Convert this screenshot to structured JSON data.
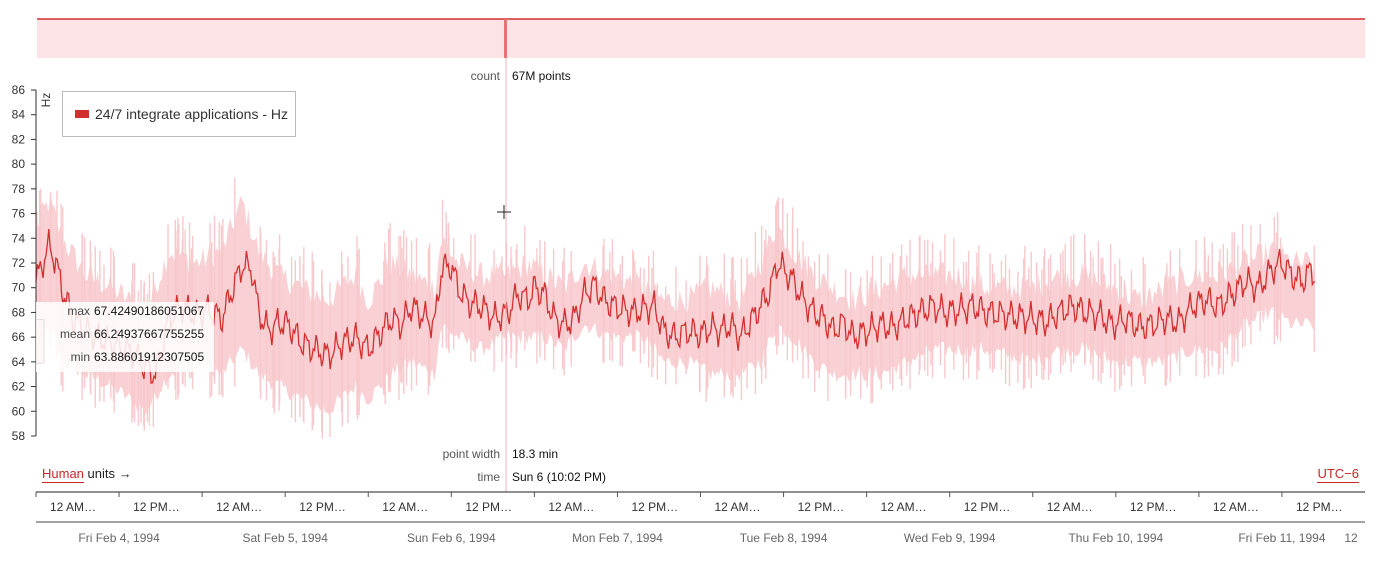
{
  "header": {
    "count_label": "count",
    "count_value": "67M points"
  },
  "cursor_info": {
    "point_width_label": "point width",
    "point_width_value": "18.3 min",
    "time_label": "time",
    "time_value": "Sun 6 (10:02 PM)"
  },
  "stats": {
    "max_label": "max",
    "max_value": "67.42490186051067",
    "mean_label": "mean",
    "mean_value": "66.24937667755255",
    "min_label": "min",
    "min_value": "63.88601912307505"
  },
  "controls": {
    "units_link": "Human",
    "units_suffix": "units →",
    "timezone": "UTC−6"
  },
  "colors": {
    "series_line": "#d32f2f",
    "series_band": "#f8c9cc",
    "overview_band": "#fce4e6",
    "accent": "#c62828"
  },
  "chart_data": {
    "type": "line",
    "legend": "24/7 integrate applications - Hz",
    "ylabel": "Hz",
    "ylim": [
      58,
      86
    ],
    "yticks": [
      "58",
      "60",
      "62",
      "64",
      "66",
      "68",
      "70",
      "72",
      "74",
      "76",
      "78",
      "80",
      "82",
      "84",
      "86"
    ],
    "time_ticks": [
      "12 AM…",
      "12 PM…",
      "12 AM…",
      "12 PM…",
      "12 AM…",
      "12 PM…",
      "12 AM…",
      "12 PM…",
      "12 AM…",
      "12 PM…",
      "12 AM…",
      "12 PM…",
      "12 AM…",
      "12 PM…",
      "12 AM…",
      "12 PM…"
    ],
    "date_ticks": [
      "Fri Feb 4, 1994",
      "Sat Feb 5, 1994",
      "Sun Feb 6, 1994",
      "Mon Feb 7, 1994",
      "Tue Feb 8, 1994",
      "Wed Feb 9, 1994",
      "Thu Feb 10, 1994",
      "Fri Feb 11, 1994",
      "12"
    ],
    "days": [
      4,
      12
    ],
    "series": [
      {
        "mean": [
          [
            4.0,
            70.5
          ],
          [
            4.04,
            72.0
          ],
          [
            4.08,
            73.5
          ],
          [
            4.12,
            72.0
          ],
          [
            4.16,
            69.8
          ],
          [
            4.22,
            67.5
          ],
          [
            4.3,
            66.5
          ],
          [
            4.38,
            66.0
          ],
          [
            4.46,
            65.5
          ],
          [
            4.54,
            65.0
          ],
          [
            4.6,
            64.5
          ],
          [
            4.66,
            63.5
          ],
          [
            4.72,
            63.0
          ],
          [
            4.8,
            67.5
          ],
          [
            4.88,
            68.5
          ],
          [
            4.96,
            67.8
          ],
          [
            5.04,
            68.2
          ],
          [
            5.12,
            67.5
          ],
          [
            5.18,
            69.8
          ],
          [
            5.24,
            71.8
          ],
          [
            5.3,
            71.5
          ],
          [
            5.34,
            68.0
          ],
          [
            5.4,
            66.5
          ],
          [
            5.46,
            67.2
          ],
          [
            5.52,
            67.0
          ],
          [
            5.6,
            65.5
          ],
          [
            5.68,
            65.0
          ],
          [
            5.76,
            64.5
          ],
          [
            5.84,
            65.5
          ],
          [
            5.92,
            66.0
          ],
          [
            6.0,
            65.0
          ],
          [
            6.08,
            66.5
          ],
          [
            6.14,
            67.5
          ],
          [
            6.2,
            67.0
          ],
          [
            6.26,
            68.5
          ],
          [
            6.32,
            67.8
          ],
          [
            6.4,
            67.0
          ],
          [
            6.44,
            71.5
          ],
          [
            6.5,
            71.8
          ],
          [
            6.54,
            70.0
          ],
          [
            6.6,
            68.8
          ],
          [
            6.68,
            68.5
          ],
          [
            6.76,
            67.5
          ],
          [
            6.84,
            68.0
          ],
          [
            6.9,
            69.5
          ],
          [
            6.96,
            69.0
          ],
          [
            7.0,
            70.0
          ],
          [
            7.06,
            69.5
          ],
          [
            7.12,
            67.5
          ],
          [
            7.18,
            67.0
          ],
          [
            7.24,
            67.5
          ],
          [
            7.3,
            69.5
          ],
          [
            7.36,
            70.2
          ],
          [
            7.42,
            69.0
          ],
          [
            7.48,
            68.5
          ],
          [
            7.54,
            68.2
          ],
          [
            7.6,
            68.0
          ],
          [
            7.66,
            68.3
          ],
          [
            7.72,
            68.5
          ],
          [
            7.78,
            66.5
          ],
          [
            7.84,
            66.0
          ],
          [
            7.92,
            66.5
          ],
          [
            8.0,
            66.2
          ],
          [
            8.06,
            66.8
          ],
          [
            8.12,
            66.5
          ],
          [
            8.18,
            67.0
          ],
          [
            8.24,
            66.0
          ],
          [
            8.3,
            67.2
          ],
          [
            8.36,
            68.5
          ],
          [
            8.42,
            69.8
          ],
          [
            8.46,
            72.0
          ],
          [
            8.5,
            71.5
          ],
          [
            8.56,
            70.5
          ],
          [
            8.62,
            69.0
          ],
          [
            8.68,
            68.0
          ],
          [
            8.74,
            67.5
          ],
          [
            8.8,
            66.5
          ],
          [
            8.86,
            67.2
          ],
          [
            8.92,
            66.0
          ],
          [
            9.0,
            66.5
          ],
          [
            9.08,
            67.0
          ],
          [
            9.16,
            66.8
          ],
          [
            9.24,
            67.5
          ],
          [
            9.32,
            68.0
          ],
          [
            9.4,
            68.5
          ],
          [
            9.48,
            68.0
          ],
          [
            9.56,
            68.2
          ],
          [
            9.64,
            68.5
          ],
          [
            9.72,
            68.0
          ],
          [
            10.0,
            67.5
          ],
          [
            10.08,
            67.2
          ],
          [
            10.16,
            68.0
          ],
          [
            10.24,
            68.5
          ],
          [
            10.32,
            68.0
          ],
          [
            10.4,
            67.8
          ],
          [
            10.48,
            67.0
          ],
          [
            10.56,
            67.5
          ],
          [
            10.64,
            66.8
          ],
          [
            10.72,
            67.0
          ],
          [
            10.8,
            67.5
          ],
          [
            10.88,
            67.2
          ],
          [
            10.96,
            68.5
          ],
          [
            11.04,
            69.0
          ],
          [
            11.12,
            68.5
          ],
          [
            11.2,
            69.5
          ],
          [
            11.28,
            70.5
          ],
          [
            11.36,
            70.0
          ],
          [
            11.44,
            71.5
          ],
          [
            11.5,
            72.0
          ],
          [
            11.56,
            71.0
          ],
          [
            11.62,
            70.5
          ],
          [
            11.68,
            71.5
          ],
          [
            11.7,
            70.8
          ]
        ],
        "band": [
          [
            4.0,
            64.0,
            76.0
          ],
          [
            4.08,
            66.0,
            78.0
          ],
          [
            4.16,
            63.0,
            75.0
          ],
          [
            4.3,
            62.0,
            72.0
          ],
          [
            4.46,
            61.0,
            71.0
          ],
          [
            4.66,
            59.0,
            69.0
          ],
          [
            4.8,
            62.0,
            74.0
          ],
          [
            4.96,
            63.0,
            73.0
          ],
          [
            5.12,
            62.0,
            74.0
          ],
          [
            5.24,
            64.0,
            78.0
          ],
          [
            5.34,
            62.0,
            74.0
          ],
          [
            5.46,
            61.0,
            72.0
          ],
          [
            5.6,
            60.0,
            71.0
          ],
          [
            5.76,
            59.0,
            70.0
          ],
          [
            5.92,
            61.0,
            72.0
          ],
          [
            6.0,
            60.0,
            70.0
          ],
          [
            6.14,
            62.0,
            73.0
          ],
          [
            6.26,
            63.0,
            72.0
          ],
          [
            6.4,
            62.0,
            71.0
          ],
          [
            6.44,
            66.0,
            75.0
          ],
          [
            6.54,
            65.0,
            73.0
          ],
          [
            6.68,
            64.0,
            72.0
          ],
          [
            6.84,
            65.0,
            72.0
          ],
          [
            6.96,
            65.0,
            73.0
          ],
          [
            7.06,
            65.0,
            72.0
          ],
          [
            7.18,
            64.0,
            71.0
          ],
          [
            7.3,
            66.0,
            73.0
          ],
          [
            7.48,
            65.0,
            72.0
          ],
          [
            7.66,
            65.0,
            71.0
          ],
          [
            7.78,
            63.0,
            70.0
          ],
          [
            7.92,
            63.0,
            70.0
          ],
          [
            8.06,
            62.0,
            71.0
          ],
          [
            8.24,
            62.0,
            70.0
          ],
          [
            8.36,
            63.0,
            73.0
          ],
          [
            8.46,
            66.0,
            76.0
          ],
          [
            8.56,
            65.0,
            74.0
          ],
          [
            8.68,
            63.0,
            72.0
          ],
          [
            8.8,
            62.0,
            71.0
          ],
          [
            8.92,
            62.0,
            70.0
          ],
          [
            9.08,
            62.0,
            71.0
          ],
          [
            9.24,
            63.0,
            72.0
          ],
          [
            9.4,
            64.0,
            72.0
          ],
          [
            9.56,
            64.0,
            72.0
          ],
          [
            9.72,
            64.0,
            71.0
          ],
          [
            10.0,
            63.0,
            71.0
          ],
          [
            10.16,
            64.0,
            72.0
          ],
          [
            10.32,
            64.0,
            72.0
          ],
          [
            10.48,
            63.0,
            71.0
          ],
          [
            10.64,
            63.0,
            70.0
          ],
          [
            10.8,
            63.0,
            71.0
          ],
          [
            10.96,
            64.0,
            72.0
          ],
          [
            11.12,
            64.0,
            72.0
          ],
          [
            11.28,
            66.0,
            73.0
          ],
          [
            11.44,
            67.0,
            74.0
          ],
          [
            11.56,
            66.0,
            73.0
          ],
          [
            11.7,
            66.0,
            73.0
          ]
        ]
      }
    ],
    "cursor_day": 6.42
  }
}
